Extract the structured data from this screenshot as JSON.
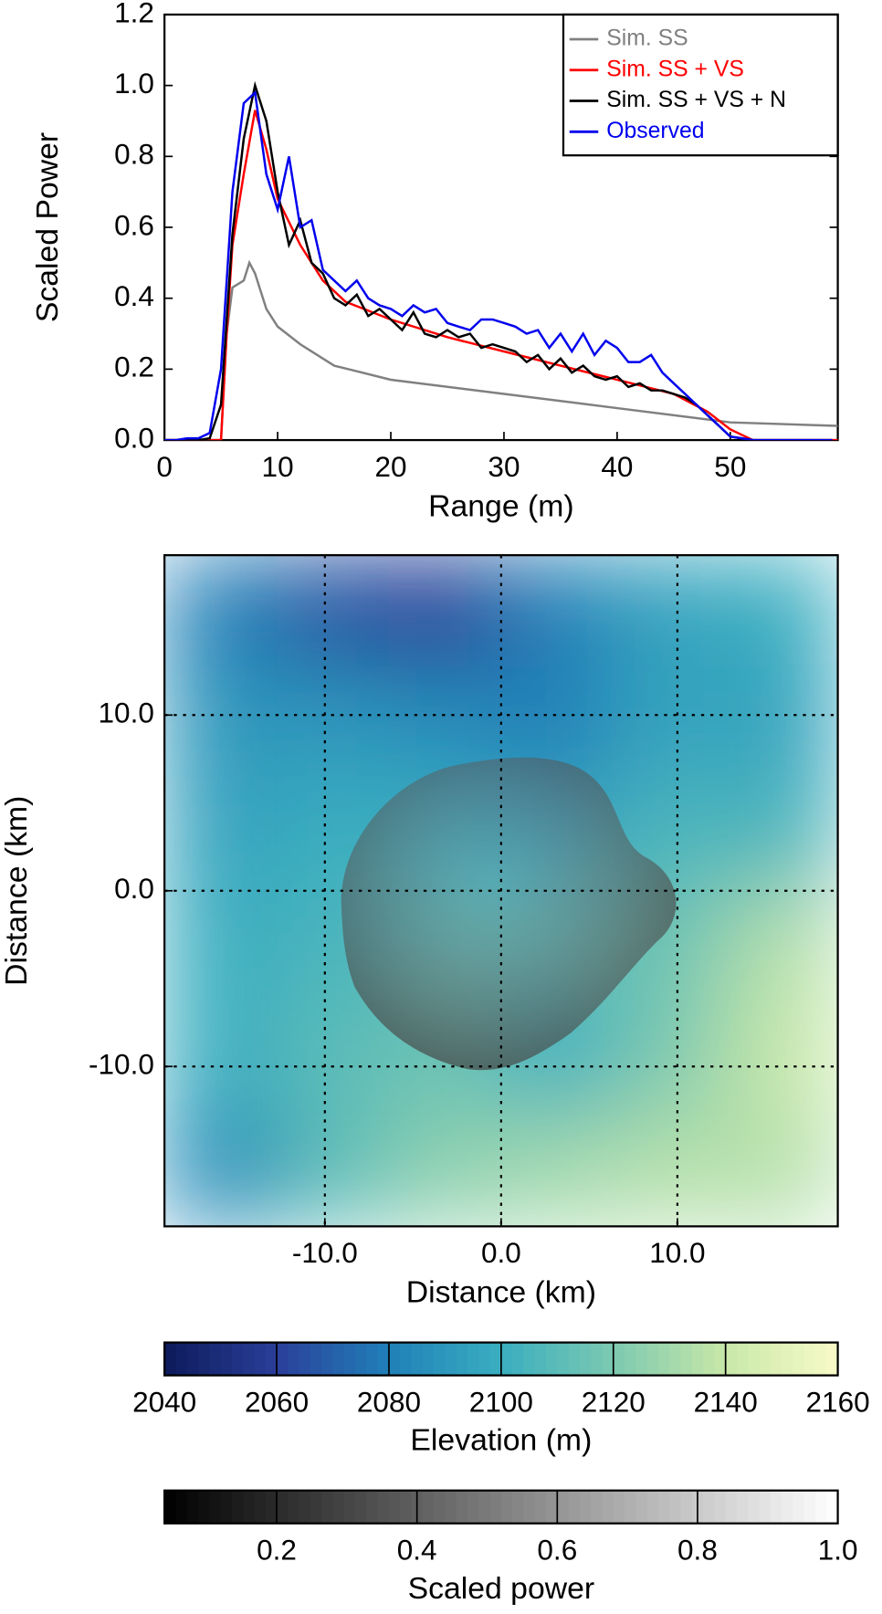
{
  "chart_data": [
    {
      "type": "line",
      "xlabel": "Range (m)",
      "ylabel": "Scaled Power",
      "xlim": [
        0,
        59.5
      ],
      "ylim": [
        0,
        1.2
      ],
      "xticks": [
        0,
        10,
        20,
        30,
        40,
        50
      ],
      "yticks": [
        {
          "value": 0,
          "label": "0.0"
        },
        {
          "value": 0.2,
          "label": "0.2"
        },
        {
          "value": 0.4,
          "label": "0.4"
        },
        {
          "value": 0.6,
          "label": "0.6"
        },
        {
          "value": 0.8,
          "label": "0.8"
        },
        {
          "value": 1.0,
          "label": "1.0"
        },
        {
          "value": 1.2,
          "label": "1.2"
        }
      ],
      "legend": "upper right",
      "series": [
        {
          "name": "Sim. SS",
          "color": "#808080",
          "x": [
            0,
            5,
            5.5,
            6,
            7,
            7.5,
            8,
            9,
            10,
            12,
            15,
            20,
            30,
            40,
            50,
            59.5
          ],
          "values": [
            0,
            0,
            0.3,
            0.43,
            0.45,
            0.5,
            0.47,
            0.37,
            0.32,
            0.27,
            0.21,
            0.17,
            0.13,
            0.09,
            0.05,
            0.04
          ]
        },
        {
          "name": "Sim. SS + VS",
          "color": "#ff0000",
          "x": [
            0,
            5,
            5.5,
            6,
            7,
            8,
            9,
            10,
            12,
            14,
            16,
            20,
            25,
            30,
            35,
            40,
            45,
            48,
            50,
            52,
            59.5
          ],
          "values": [
            0,
            0,
            0.3,
            0.55,
            0.75,
            0.93,
            0.82,
            0.68,
            0.55,
            0.45,
            0.39,
            0.34,
            0.29,
            0.25,
            0.21,
            0.17,
            0.13,
            0.08,
            0.03,
            0,
            0
          ]
        },
        {
          "name": "Sim. SS + VS + N",
          "color": "#000000",
          "x": [
            0,
            1,
            2,
            3,
            4,
            5,
            6,
            7,
            8,
            9,
            10,
            11,
            12,
            13,
            14,
            15,
            16,
            17,
            18,
            19,
            20,
            21,
            22,
            23,
            24,
            25,
            26,
            27,
            28,
            29,
            30,
            31,
            32,
            33,
            34,
            35,
            36,
            37,
            38,
            39,
            40,
            41,
            42,
            43,
            44,
            45,
            46,
            47,
            48,
            49,
            50,
            51,
            52,
            53,
            54,
            55,
            56,
            57,
            58,
            59
          ],
          "values": [
            0,
            0,
            0,
            0,
            0.005,
            0.1,
            0.58,
            0.85,
            1.0,
            0.9,
            0.7,
            0.55,
            0.62,
            0.5,
            0.47,
            0.4,
            0.38,
            0.41,
            0.35,
            0.37,
            0.34,
            0.31,
            0.36,
            0.3,
            0.29,
            0.31,
            0.29,
            0.3,
            0.26,
            0.27,
            0.26,
            0.25,
            0.22,
            0.24,
            0.2,
            0.23,
            0.19,
            0.21,
            0.18,
            0.17,
            0.18,
            0.15,
            0.16,
            0.14,
            0.14,
            0.13,
            0.12,
            0.1,
            0.07,
            0.04,
            0.01,
            0.005,
            0,
            0,
            0,
            0,
            0,
            0,
            0,
            0
          ]
        },
        {
          "name": "Observed",
          "color": "#0000ee",
          "x": [
            0,
            1,
            2,
            3,
            4,
            5,
            6,
            7,
            8,
            9,
            10,
            11,
            12,
            13,
            14,
            15,
            16,
            17,
            18,
            19,
            20,
            21,
            22,
            23,
            24,
            25,
            26,
            27,
            28,
            29,
            30,
            31,
            32,
            33,
            34,
            35,
            36,
            37,
            38,
            39,
            40,
            41,
            42,
            43,
            44,
            45,
            46,
            47,
            48,
            49,
            50,
            51,
            52,
            53,
            54,
            55,
            56,
            57,
            58,
            59
          ],
          "values": [
            0,
            0,
            0.005,
            0.005,
            0.02,
            0.2,
            0.7,
            0.95,
            0.98,
            0.75,
            0.65,
            0.8,
            0.6,
            0.62,
            0.48,
            0.45,
            0.42,
            0.45,
            0.4,
            0.38,
            0.37,
            0.35,
            0.38,
            0.36,
            0.37,
            0.33,
            0.32,
            0.31,
            0.34,
            0.34,
            0.33,
            0.32,
            0.3,
            0.31,
            0.26,
            0.3,
            0.25,
            0.3,
            0.24,
            0.28,
            0.26,
            0.22,
            0.22,
            0.24,
            0.19,
            0.16,
            0.13,
            0.1,
            0.07,
            0.04,
            0.01,
            0.005,
            0,
            0,
            0,
            0,
            0,
            0,
            0,
            0
          ]
        }
      ]
    },
    {
      "type": "heatmap",
      "xlabel": "Distance (km)",
      "ylabel": "Distance (km)",
      "xlim": [
        -19.1,
        19.1
      ],
      "ylim": [
        -19.1,
        19.1
      ],
      "xticks": [
        {
          "value": -10,
          "label": "-10.0"
        },
        {
          "value": 0,
          "label": "0.0"
        },
        {
          "value": 10,
          "label": "10.0"
        }
      ],
      "yticks": [
        {
          "value": -10,
          "label": "-10.0"
        },
        {
          "value": 0,
          "label": "0.0"
        },
        {
          "value": 10,
          "label": "10.0"
        }
      ],
      "grid": true,
      "x": [
        -15.9,
        -9.5,
        -3.2,
        3.2,
        9.5,
        15.9
      ],
      "y": [
        15.9,
        9.5,
        3.2,
        -3.2,
        -9.5,
        -15.9
      ],
      "z": [
        [
          2080,
          2065,
          2060,
          2080,
          2095,
          2100
        ],
        [
          2090,
          2090,
          2085,
          2080,
          2095,
          2095
        ],
        [
          2095,
          2100,
          2100,
          2095,
          2105,
          2105
        ],
        [
          2100,
          2105,
          2110,
          2110,
          2115,
          2135
        ],
        [
          2100,
          2110,
          2115,
          2100,
          2120,
          2140
        ],
        [
          2085,
          2110,
          2125,
          2130,
          2135,
          2135
        ]
      ]
    },
    {
      "type": "colorbar",
      "label": "Elevation (m)",
      "lim": [
        2040,
        2160
      ],
      "ticks": [
        2040,
        2060,
        2080,
        2100,
        2120,
        2140,
        2160
      ],
      "colors": [
        "#0d1a5a",
        "#2a3f9a",
        "#2080b8",
        "#3aaec0",
        "#7cc9b0",
        "#c8e8a8",
        "#f8fac8"
      ]
    },
    {
      "type": "colorbar",
      "label": "Scaled power",
      "lim": [
        0.04,
        1.0
      ],
      "ticks": [
        {
          "value": 0.2,
          "label": "0.2"
        },
        {
          "value": 0.4,
          "label": "0.4"
        },
        {
          "value": 0.6,
          "label": "0.6"
        },
        {
          "value": 0.8,
          "label": "0.8"
        },
        {
          "value": 1.0,
          "label": "1.0"
        }
      ],
      "colors": [
        "#000000",
        "#ffffff"
      ]
    }
  ]
}
